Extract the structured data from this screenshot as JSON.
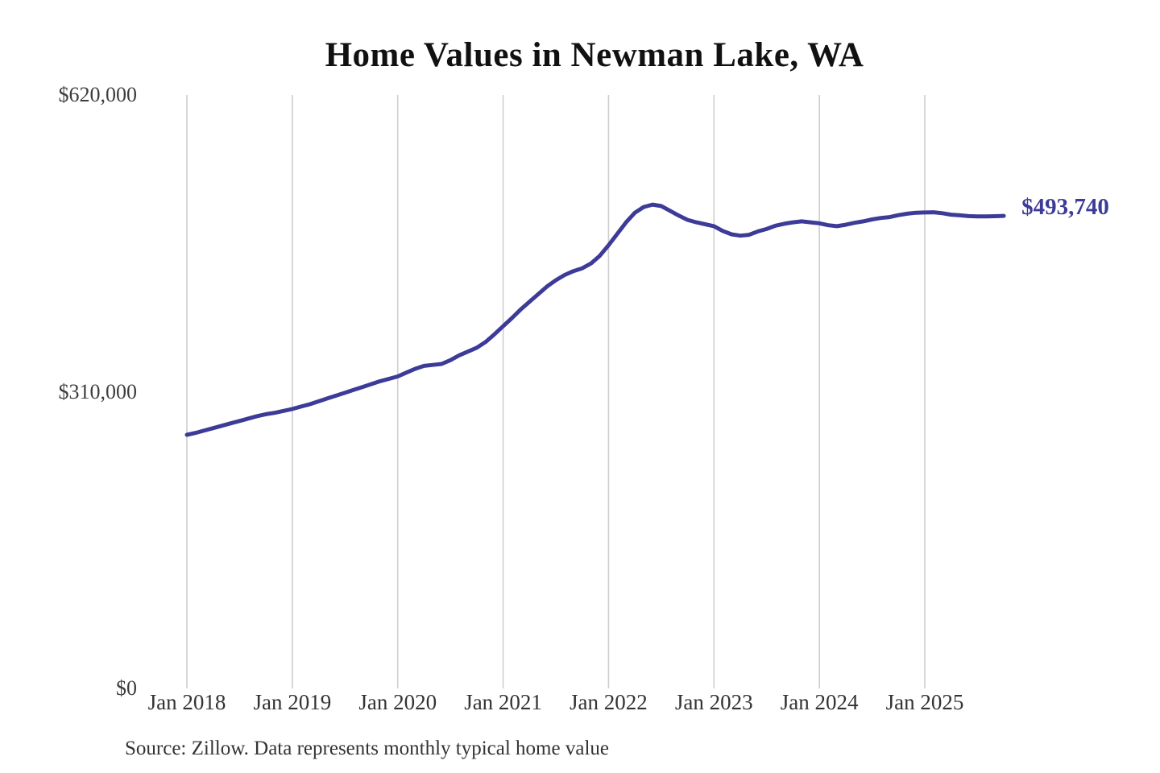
{
  "page": {
    "background_color": "#ffffff"
  },
  "chart_data": {
    "type": "line",
    "title": "Home Values in Newman Lake, WA",
    "xlabel": "",
    "ylabel": "",
    "ylim": [
      0,
      620000
    ],
    "y_tick_values": [
      0,
      310000,
      620000
    ],
    "y_tick_labels": [
      "$0",
      "$310,000",
      "$620,000"
    ],
    "x_tick_labels": [
      "Jan 2018",
      "Jan 2019",
      "Jan 2020",
      "Jan 2021",
      "Jan 2022",
      "Jan 2023",
      "Jan 2024",
      "Jan 2025"
    ],
    "x_unit": "month",
    "grid": "vertical-only",
    "legend": "none",
    "line_color": "#3d3b98",
    "grid_color": "#cecece",
    "series": [
      {
        "name": "Monthly typical home value",
        "start_tick": "Jan 2018",
        "values": [
          265000,
          267000,
          269500,
          272000,
          274500,
          277000,
          279500,
          282000,
          284500,
          286500,
          288000,
          290000,
          292000,
          294500,
          297000,
          300000,
          303000,
          306000,
          309000,
          312000,
          315000,
          318000,
          321000,
          323500,
          326000,
          330000,
          334000,
          337000,
          338000,
          339000,
          343000,
          348000,
          352000,
          356000,
          362000,
          370000,
          378500,
          387000,
          396000,
          404000,
          412000,
          420000,
          426500,
          432000,
          436000,
          439000,
          444000,
          452000,
          463000,
          475000,
          487000,
          497000,
          503000,
          505500,
          504000,
          499000,
          494000,
          489500,
          487000,
          485000,
          483000,
          478000,
          474500,
          473000,
          474000,
          477500,
          480000,
          483500,
          485500,
          487000,
          488000,
          487000,
          486000,
          484000,
          483000,
          484500,
          486500,
          488000,
          490000,
          491500,
          492500,
          494500,
          496000,
          497000,
          497300,
          497500,
          496500,
          495000,
          494300,
          493500,
          493200,
          493200,
          493400,
          493740
        ]
      }
    ],
    "end_value": 493740,
    "end_label": "$493,740"
  },
  "footer": {
    "source": "Source: Zillow. Data represents monthly typical home value"
  }
}
